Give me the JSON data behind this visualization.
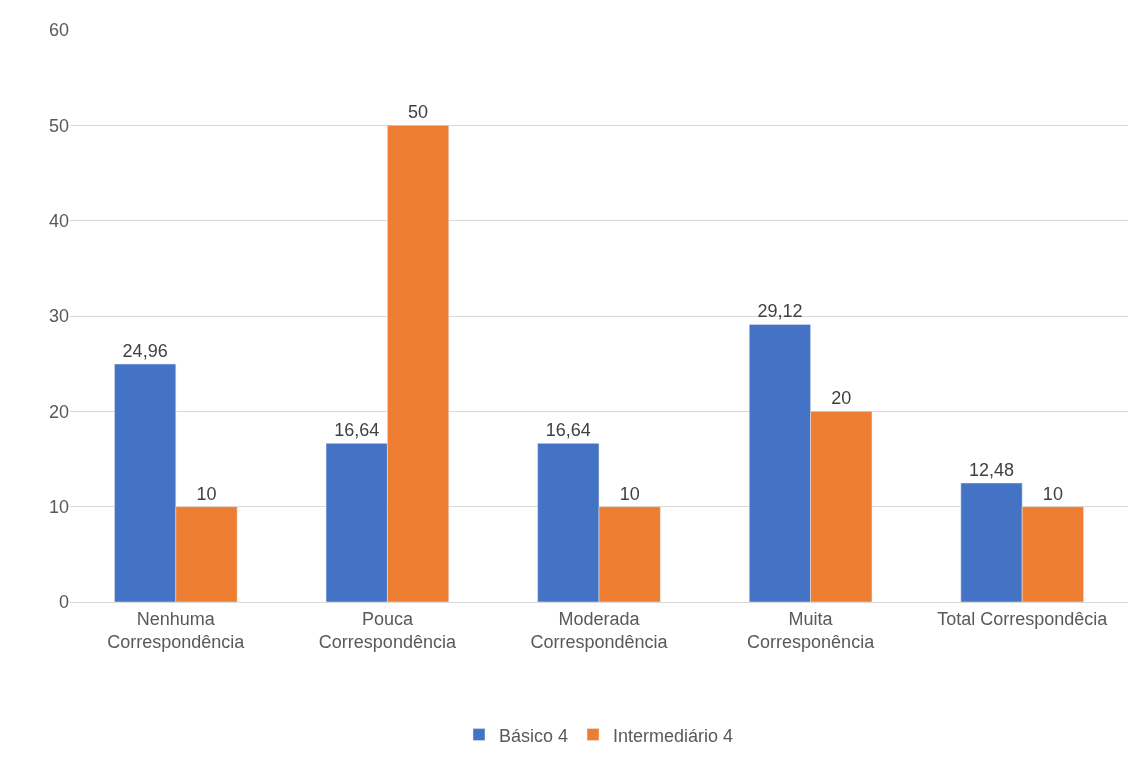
{
  "chart_data": {
    "type": "bar",
    "categories": [
      "Nenhuma\nCorrespondência",
      "Pouca\nCorrespondência",
      "Moderada\nCorrespondência",
      "Muita\nCorresponência",
      "Total Correspondêcia"
    ],
    "series": [
      {
        "name": "Básico 4",
        "color": "#4472c4",
        "values": [
          24.96,
          16.64,
          16.64,
          29.12,
          12.48
        ],
        "value_labels": [
          "24,96",
          "16,64",
          "16,64",
          "29,12",
          "12,48"
        ]
      },
      {
        "name": "Intermediário 4",
        "color": "#ed7d31",
        "values": [
          10,
          50,
          10,
          20,
          10
        ],
        "value_labels": [
          "10",
          "50",
          "10",
          "20",
          "10"
        ]
      }
    ],
    "ylim": [
      0,
      60
    ],
    "yticks": [
      0,
      10,
      20,
      30,
      40,
      50,
      60
    ],
    "grid": "y",
    "legend": "bottom"
  }
}
